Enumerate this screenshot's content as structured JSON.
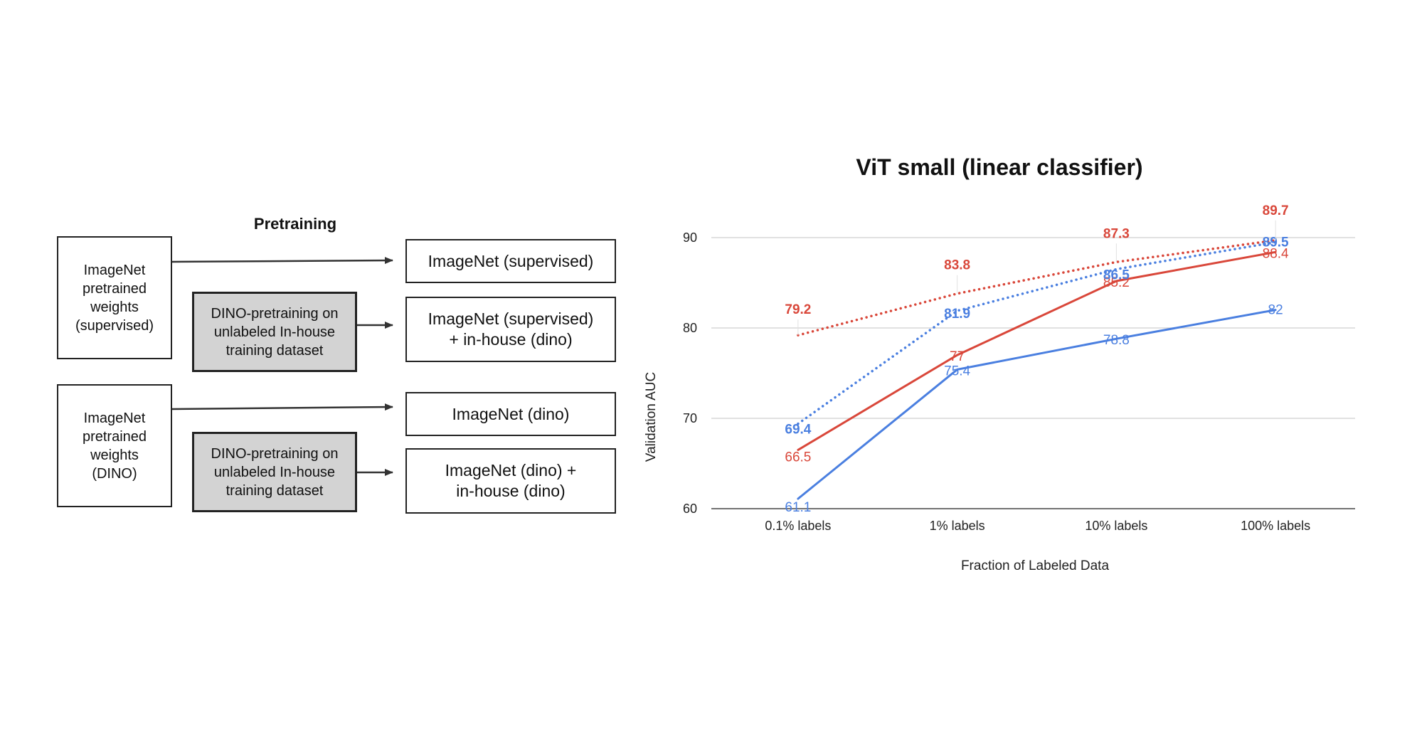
{
  "diagram": {
    "title": "Pretraining",
    "sources": [
      {
        "label": "ImageNet\npretrained\nweights\n(supervised)"
      },
      {
        "label": "ImageNet\npretrained\nweights\n(DINO)"
      }
    ],
    "pretrain_steps": [
      {
        "label": "DINO-pretraining on\nunlabeled In-house\ntraining dataset"
      },
      {
        "label": "DINO-pretraining on\nunlabeled In-house\ntraining dataset"
      }
    ],
    "outputs": [
      {
        "label": "ImageNet (supervised)"
      },
      {
        "label": "ImageNet (supervised)\n+ in-house (dino)"
      },
      {
        "label": "ImageNet (dino)"
      },
      {
        "label": "ImageNet (dino) +\nin-house (dino)"
      }
    ]
  },
  "chart_data": {
    "type": "line",
    "title": "ViT small (linear classifier)",
    "xlabel": "Fraction of Labeled Data",
    "ylabel": "Validation AUC",
    "categories": [
      "0.1% labels",
      "1% labels",
      "10% labels",
      "100% labels"
    ],
    "ylim": [
      60,
      90
    ],
    "yticks": [
      60,
      70,
      80,
      90
    ],
    "grid": true,
    "legend": "none",
    "series": [
      {
        "values": [
          61.1,
          75.4,
          78.8,
          82
        ],
        "labels": [
          "61.1",
          "75.4",
          "78.8",
          "82"
        ],
        "color": "#4a7fe0",
        "style": "solid",
        "label_bold": false
      },
      {
        "values": [
          66.5,
          77,
          85.2,
          88.4
        ],
        "labels": [
          "66.5",
          "77",
          "85.2",
          "88.4"
        ],
        "color": "#d9473a",
        "style": "solid",
        "label_bold": false
      },
      {
        "values": [
          69.4,
          81.9,
          86.5,
          89.5
        ],
        "labels": [
          "69.4",
          "81.9",
          "86.5",
          "89.5"
        ],
        "color": "#4a7fe0",
        "style": "dotted",
        "label_bold": true
      },
      {
        "values": [
          79.2,
          83.8,
          87.3,
          89.7
        ],
        "labels": [
          "79.2",
          "83.8",
          "87.3",
          "89.7"
        ],
        "color": "#d9473a",
        "style": "dotted",
        "label_bold": true
      }
    ]
  }
}
